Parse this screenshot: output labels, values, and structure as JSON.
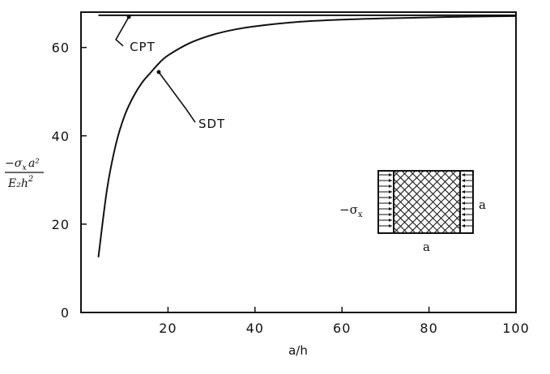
{
  "chart_data": {
    "type": "line",
    "title": "",
    "xlabel": "a/h",
    "ylabel": {
      "numerator_sigma": "−σ",
      "numerator_sub": "x",
      "numerator_rest": "a²",
      "denominator_main": "E₂h",
      "denominator_sup": "2"
    },
    "xlim": [
      0,
      100
    ],
    "ylim": [
      0,
      68
    ],
    "x_ticks": [
      20,
      40,
      60,
      80,
      100
    ],
    "y_ticks": [
      0,
      20,
      40,
      60
    ],
    "grid": false,
    "series": [
      {
        "name": "CPT",
        "x": [
          4,
          100
        ],
        "y": [
          67.3,
          67.3
        ]
      },
      {
        "name": "SDT",
        "x": [
          4,
          6,
          8,
          10,
          12,
          14,
          16,
          18,
          20,
          25,
          30,
          35,
          40,
          50,
          60,
          70,
          80,
          90,
          100
        ],
        "y": [
          12.5,
          28,
          38,
          44.5,
          48.8,
          52,
          54.3,
          56.5,
          58.2,
          61,
          62.8,
          64,
          64.8,
          65.8,
          66.3,
          66.6,
          66.8,
          67.0,
          67.1
        ]
      }
    ],
    "annotations": [
      {
        "text": "CPT",
        "series": "CPT",
        "at_x": 11,
        "at_y": 67.3
      },
      {
        "text": "SDT",
        "series": "SDT",
        "at_x": 17.5,
        "at_y": 54.8
      }
    ],
    "inset": {
      "load_label_sigma": "−σ",
      "load_label_sub": "x",
      "side_label": "a",
      "bottom_label": "a"
    }
  }
}
